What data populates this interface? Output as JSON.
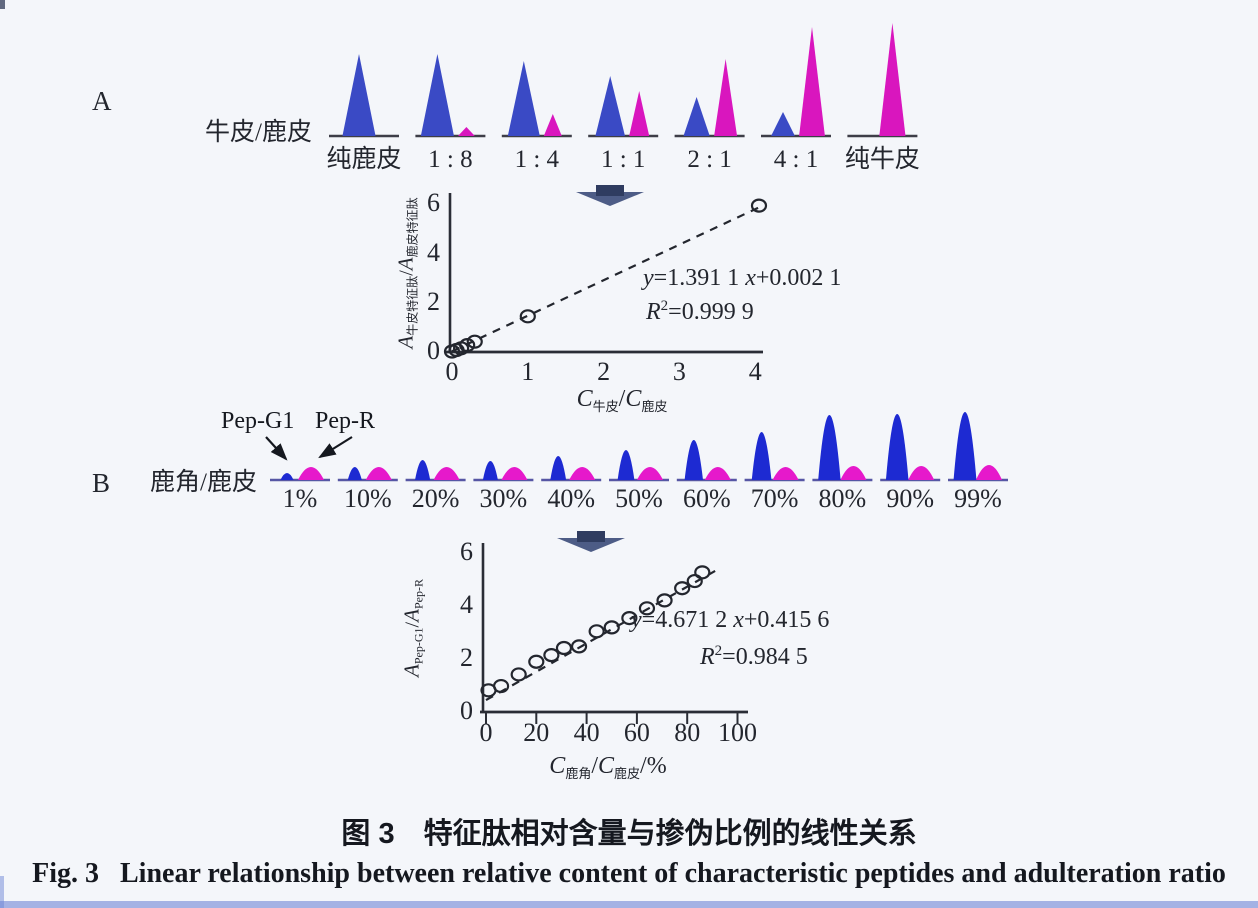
{
  "panels": {
    "a": {
      "tag": "A"
    },
    "b": {
      "tag": "B"
    }
  },
  "caption": {
    "zh": "图 3　特征肽相对含量与掺伪比例的线性关系",
    "en": "Fig. 3   Linear relationship between relative content of characteristic peptides and adulteration ratio"
  },
  "chart_data": [
    {
      "type": "chromatogram",
      "panel": "A",
      "row_label": "牛皮/鹿皮",
      "categories": [
        "纯鹿皮",
        "1 : 8",
        "1 : 4",
        "1 : 1",
        "2 : 1",
        "4 : 1",
        "纯牛皮"
      ],
      "series": [
        {
          "name": "鹿皮特征肽",
          "color": "#3a4ac5",
          "values": [
            82,
            82,
            75,
            60,
            39,
            24,
            0
          ]
        },
        {
          "name": "牛皮特征肽",
          "color": "#d916be",
          "values": [
            0,
            9,
            22,
            45,
            77,
            109,
            113
          ]
        }
      ]
    },
    {
      "type": "chromatogram",
      "panel": "B",
      "row_label": "鹿角/鹿皮",
      "categories": [
        "1%",
        "10%",
        "20%",
        "30%",
        "40%",
        "50%",
        "60%",
        "70%",
        "80%",
        "90%",
        "99%"
      ],
      "series": [
        {
          "name": "Pep-G1",
          "color": "#1d2ad2",
          "values": [
            7,
            13,
            20,
            19,
            24,
            30,
            40,
            48,
            65,
            66,
            68
          ]
        },
        {
          "name": "Pep-R",
          "color": "#e619cb",
          "values": [
            13,
            13,
            13,
            13,
            13,
            13,
            13,
            13,
            14,
            14,
            15
          ]
        }
      ]
    },
    {
      "type": "scatter",
      "panel": "A",
      "x_label_parts": {
        "c1": "C",
        "s1": "牛皮",
        "sep": "/",
        "c2": "C",
        "s2": "鹿皮",
        "unit": ""
      },
      "y_label_parts": {
        "a1": "A",
        "s1": "牛皮特征肽",
        "sep": "/",
        "a2": "A",
        "s2": "鹿皮特征肽"
      },
      "x_ticks": [
        0,
        1,
        2,
        3,
        4
      ],
      "y_ticks": [
        0,
        2,
        4,
        6
      ],
      "xlim": [
        0,
        4.3
      ],
      "ylim": [
        0,
        6.4
      ],
      "grid": false,
      "points": [
        [
          0,
          0.02
        ],
        [
          0.06,
          0.08
        ],
        [
          0.12,
          0.15
        ],
        [
          0.2,
          0.28
        ],
        [
          0.3,
          0.42
        ],
        [
          1,
          1.45
        ],
        [
          4.05,
          5.95
        ]
      ],
      "fit_line": [
        [
          0,
          0.03
        ],
        [
          4.12,
          5.98
        ]
      ],
      "equation": {
        "lhs": "y",
        "mid": "=1.391 1 ",
        "var": "x",
        "tail": "+0.002 1"
      },
      "r_squared": {
        "lhs": "R",
        "sup": "2",
        "rhs": "=0.999 9"
      }
    },
    {
      "type": "scatter",
      "panel": "B",
      "x_label_parts": {
        "c1": "C",
        "s1": "鹿角",
        "sep": "/",
        "c2": "C",
        "s2": "鹿皮",
        "unit": "/%"
      },
      "y_label_parts": {
        "a1": "A",
        "s1": "Pep-G1",
        "sep": "/",
        "a2": "A",
        "s2": "Pep-R"
      },
      "x_ticks": [
        0,
        20,
        40,
        60,
        80,
        100
      ],
      "y_ticks": [
        0,
        2,
        4,
        6
      ],
      "xlim": [
        0,
        104
      ],
      "ylim": [
        0,
        6.3
      ],
      "grid": false,
      "points": [
        [
          1,
          0.82
        ],
        [
          6,
          0.98
        ],
        [
          13,
          1.42
        ],
        [
          20,
          1.9
        ],
        [
          26,
          2.15
        ],
        [
          31,
          2.42
        ],
        [
          37,
          2.48
        ],
        [
          44,
          3.05
        ],
        [
          50,
          3.2
        ],
        [
          57,
          3.55
        ],
        [
          64,
          3.92
        ],
        [
          71,
          4.22
        ],
        [
          78,
          4.68
        ],
        [
          83,
          4.95
        ],
        [
          86,
          5.28
        ]
      ],
      "fit_line": [
        [
          0,
          0.45
        ],
        [
          92,
          5.38
        ]
      ],
      "equation": {
        "lhs": "y",
        "mid": "=4.671 2 ",
        "var": "x",
        "tail": "+0.415 6"
      },
      "r_squared": {
        "lhs": "R",
        "sup": "2",
        "rhs": "=0.984 5"
      }
    }
  ]
}
